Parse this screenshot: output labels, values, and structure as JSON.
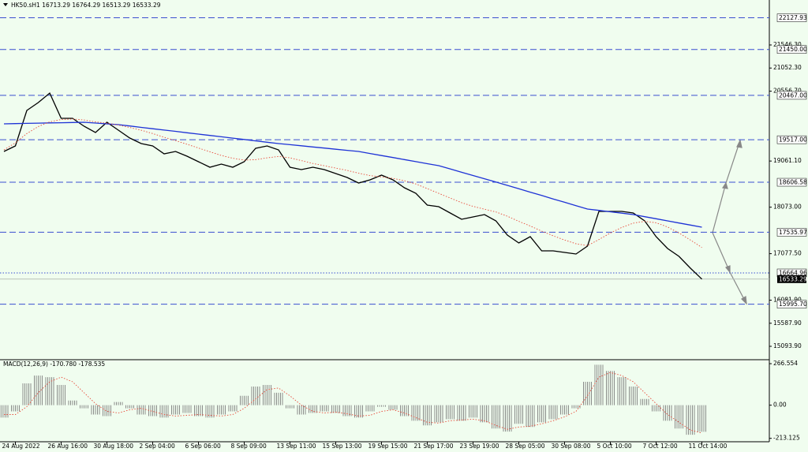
{
  "chart_data": [
    {
      "type": "line",
      "title": "HK50.sH1  16713.29 16764.29 16513.29 16533.29",
      "categories": [
        null,
        "24 Aug 2022",
        null,
        null,
        null,
        "26 Aug 16:00",
        null,
        null,
        null,
        "30 Aug 18:00",
        null,
        null,
        null,
        "2 Sep 04:00",
        null,
        null,
        null,
        "6 Sep 06:00",
        null,
        null,
        null,
        "8 Sep 09:00",
        null,
        null,
        null,
        "13 Sep 11:00",
        null,
        null,
        null,
        "15 Sep 13:00",
        null,
        null,
        null,
        "19 Sep 15:00",
        null,
        null,
        null,
        "21 Sep 17:00",
        null,
        null,
        null,
        "23 Sep 19:00",
        null,
        null,
        null,
        "28 Sep 05:00",
        null,
        null,
        null,
        "30 Sep 08:00",
        null,
        null,
        null,
        "5 Oct 10:00",
        null,
        null,
        null,
        "7 Oct 12:00",
        null,
        null,
        null,
        "11 Oct 14:00"
      ],
      "series": [
        {
          "color": "#000000",
          "style": "solid",
          "values": [
            19266,
            19384,
            20144,
            20313,
            20516,
            19975,
            19975,
            19806,
            19671,
            19891,
            19722,
            19553,
            19435,
            19384,
            19215,
            19266,
            19165,
            19046,
            18928,
            18996,
            18928,
            19046,
            19333,
            19384,
            19300,
            18928,
            18877,
            18928,
            18877,
            18793,
            18708,
            18590,
            18658,
            18759,
            18658,
            18489,
            18371,
            18117,
            18084,
            17948,
            17813,
            17864,
            17915,
            17780,
            17476,
            17307,
            17442,
            17138,
            17138,
            17104,
            17070,
            17239,
            17982,
            17982,
            17982,
            17948,
            17780,
            17442,
            17188,
            17019,
            16766,
            16533.29
          ]
        },
        {
          "color": "#1e32d6",
          "style": "solid",
          "values": [
            19857,
            19862,
            19867,
            19872,
            19877,
            19881,
            19886,
            19891,
            19874,
            19857,
            19840,
            19811,
            19782,
            19753,
            19724,
            19696,
            19667,
            19638,
            19609,
            19580,
            19551,
            19522,
            19493,
            19464,
            19435,
            19411,
            19387,
            19363,
            19339,
            19314,
            19290,
            19266,
            19223,
            19179,
            19136,
            19092,
            19049,
            19005,
            18962,
            18892,
            18821,
            18751,
            18681,
            18610,
            18540,
            18468,
            18395,
            18323,
            18250,
            18178,
            18105,
            18033,
            18004,
            17974,
            17945,
            17915,
            17870,
            17825,
            17780,
            17735,
            17690,
            17645
          ]
        },
        {
          "color": "#e84a3a",
          "style": "dotted",
          "values": [
            19300,
            19450,
            19650,
            19800,
            19900,
            19950,
            19960,
            19940,
            19900,
            19870,
            19830,
            19780,
            19720,
            19650,
            19570,
            19500,
            19420,
            19340,
            19260,
            19180,
            19120,
            19080,
            19090,
            19130,
            19160,
            19130,
            19070,
            19010,
            18960,
            18910,
            18860,
            18800,
            18750,
            18720,
            18690,
            18640,
            18570,
            18470,
            18370,
            18270,
            18170,
            18090,
            18030,
            17970,
            17880,
            17770,
            17670,
            17560,
            17460,
            17370,
            17290,
            17250,
            17380,
            17520,
            17640,
            17730,
            17770,
            17740,
            17650,
            17520,
            17370,
            17210
          ]
        }
      ],
      "ylim": [
        14824,
        22509
      ],
      "yticks": [
        {
          "value": 21546.3,
          "label": "21546.30"
        },
        {
          "value": 21052.3,
          "label": "21052.30"
        },
        {
          "value": 20556.7,
          "label": "20556.70"
        },
        {
          "value": 19061.1,
          "label": "19061.10"
        },
        {
          "value": 18073,
          "label": "18073.00"
        },
        {
          "value": 17077.5,
          "label": "17077.50"
        },
        {
          "value": 16081.9,
          "label": "16081.90"
        },
        {
          "value": 15587.9,
          "label": "15587.90"
        },
        {
          "value": 15093.9,
          "label": "15093.90"
        }
      ],
      "levels": [
        {
          "value": 22127.93,
          "label": "22127.93",
          "style": "dashed"
        },
        {
          "value": 21450,
          "label": "21450.00",
          "style": "dashed"
        },
        {
          "value": 20467,
          "label": "20467.00",
          "style": "dashed"
        },
        {
          "value": 19517,
          "label": "19517.00",
          "style": "dashed"
        },
        {
          "value": 18606.58,
          "label": "18606.58",
          "style": "dashed"
        },
        {
          "value": 17535.97,
          "label": "17535.97",
          "style": "dashed"
        },
        {
          "value": 16664.96,
          "label": "16664.96",
          "style": "dotted"
        },
        {
          "value": 15995.7,
          "label": "15995.70",
          "style": "dashed"
        }
      ],
      "level_color": "#3a4fd0",
      "last_price": {
        "value": 16533.29,
        "label": "16533.29"
      }
    },
    {
      "type": "macd",
      "title": "MACD(12,26,9) -170.780 -178.535",
      "ylim": [
        -235,
        287
      ],
      "yticks": [
        {
          "value": 266.554,
          "label": "266.554"
        },
        {
          "value": 0,
          "label": "0.00"
        },
        {
          "value": -213.125,
          "label": "-213.125"
        }
      ],
      "series": [
        {
          "color": "#7f7f7f",
          "values": [
            -80,
            -40,
            140,
            190,
            180,
            130,
            30,
            -20,
            -60,
            -70,
            20,
            -20,
            -60,
            -70,
            -80,
            -60,
            -50,
            -70,
            -80,
            -60,
            -40,
            60,
            120,
            130,
            80,
            -20,
            -60,
            -50,
            -40,
            -50,
            -70,
            -80,
            -40,
            -10,
            -30,
            -70,
            -100,
            -130,
            -110,
            -90,
            -100,
            -80,
            -110,
            -150,
            -170,
            -120,
            -140,
            -110,
            -90,
            -60,
            -20,
            150,
            260,
            220,
            180,
            120,
            40,
            -40,
            -100,
            -150,
            -190,
            -170.78
          ]
        },
        {
          "color": "#e84a3a",
          "style": "dotted",
          "values": [
            -60,
            -60,
            -10,
            80,
            150,
            180,
            150,
            80,
            10,
            -40,
            -50,
            -30,
            -20,
            -40,
            -60,
            -70,
            -65,
            -60,
            -65,
            -70,
            -60,
            -20,
            40,
            100,
            110,
            60,
            0,
            -40,
            -50,
            -45,
            -55,
            -70,
            -65,
            -40,
            -30,
            -50,
            -80,
            -110,
            -115,
            -100,
            -95,
            -90,
            -100,
            -130,
            -155,
            -140,
            -135,
            -120,
            -100,
            -75,
            -40,
            60,
            180,
            210,
            190,
            150,
            80,
            10,
            -60,
            -110,
            -160,
            -178.535
          ]
        }
      ]
    }
  ]
}
